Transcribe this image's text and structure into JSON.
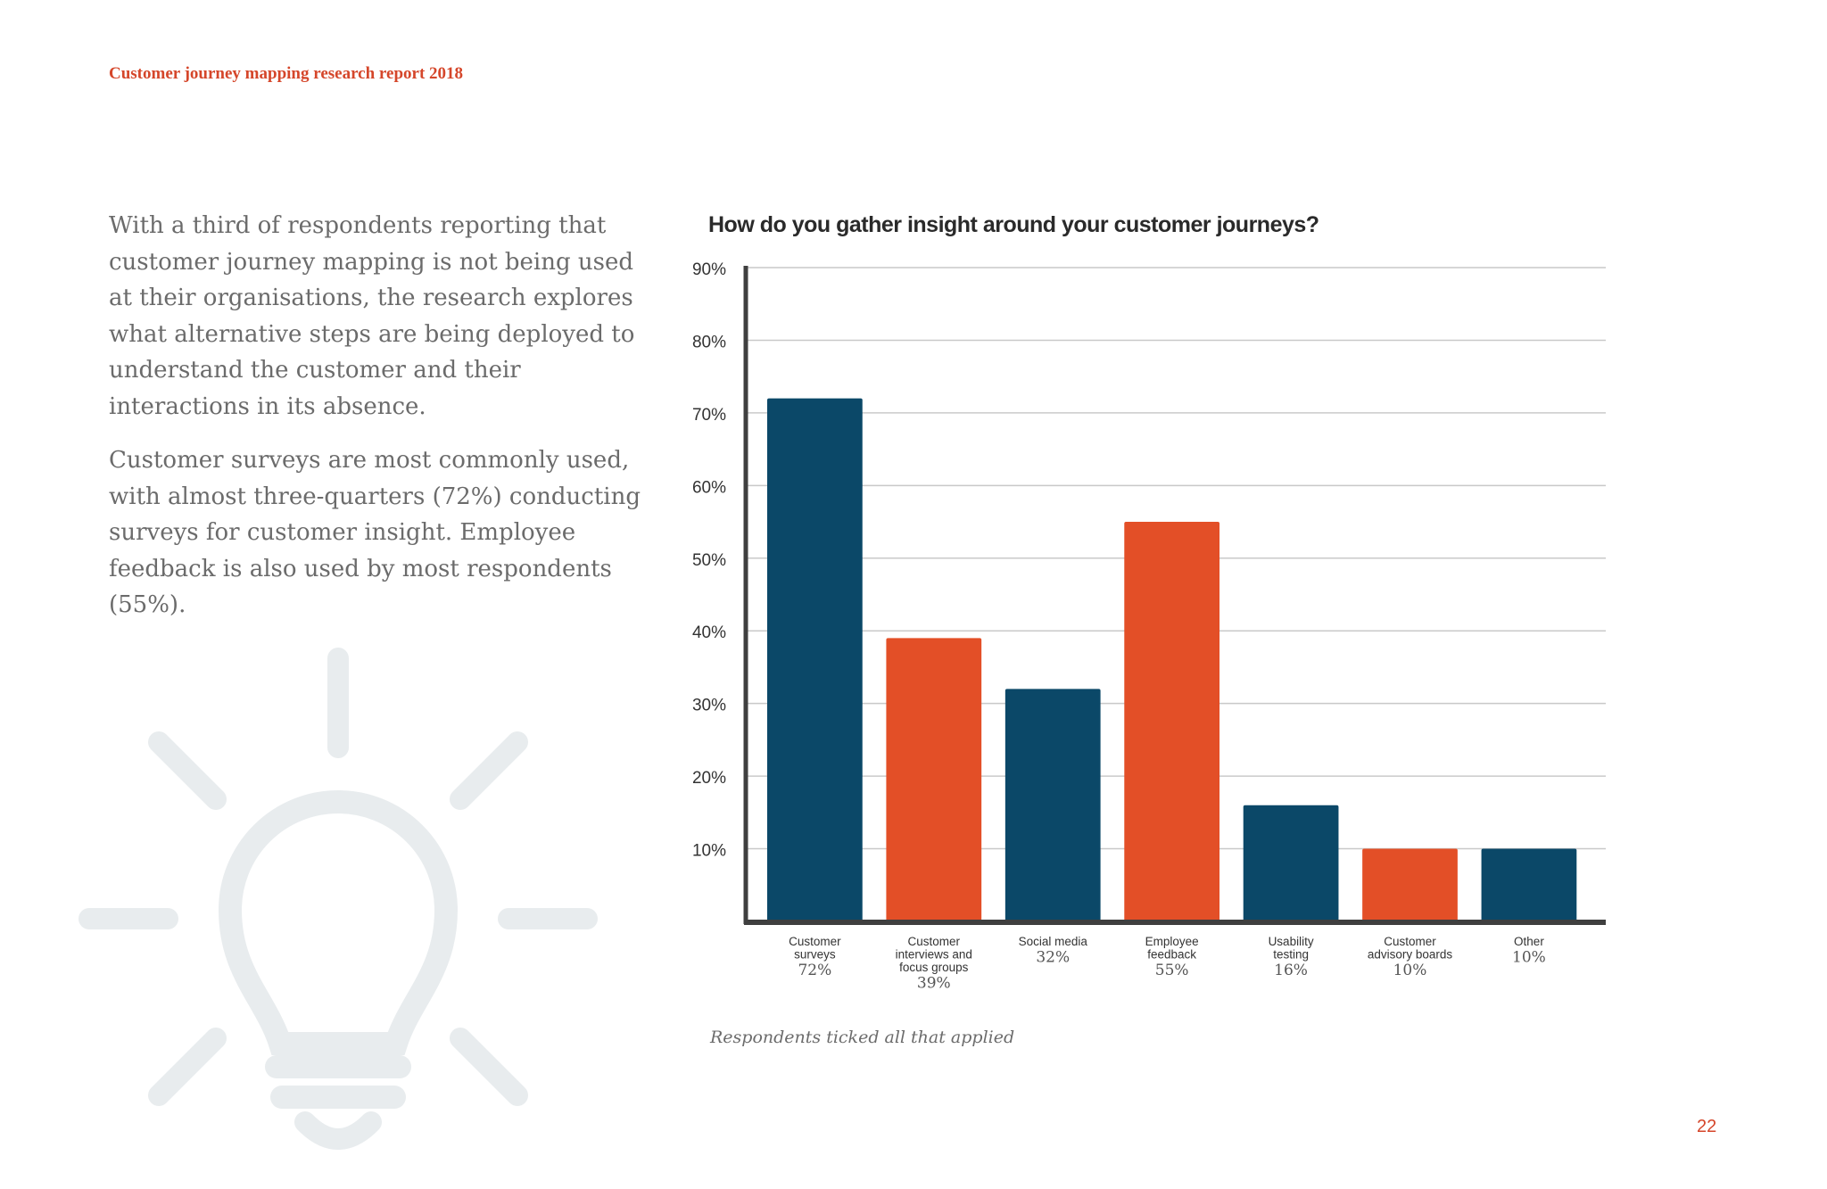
{
  "header": {
    "title": "Customer journey mapping research report 2018"
  },
  "intro": {
    "paragraph_1": "With a third of respondents reporting that customer journey mapping is not being used at their organisations, the research explores what alternative steps are being deployed to understand the customer and their interactions in its absence.",
    "paragraph_2": "Customer surveys are most commonly used, with almost three-quarters (72%) conducting surveys for customer insight. Employee feedback is also used by most respondents (55%)."
  },
  "decoration": {
    "icon": "lightbulb-icon"
  },
  "chart_data": {
    "type": "bar",
    "title": "How do you gather insight around your customer journeys?",
    "xlabel": "",
    "ylabel": "",
    "ylim": [
      0,
      90
    ],
    "yticks": [
      10,
      20,
      30,
      40,
      50,
      60,
      70,
      80,
      90
    ],
    "ytick_labels": [
      "10%",
      "20%",
      "30%",
      "40%",
      "50%",
      "60%",
      "70%",
      "80%",
      "90%"
    ],
    "grid": true,
    "categories": [
      [
        "Customer",
        "surveys"
      ],
      [
        "Customer",
        "interviews and",
        "focus groups"
      ],
      [
        "Social media"
      ],
      [
        "Employee",
        "feedback"
      ],
      [
        "Usability",
        "testing"
      ],
      [
        "Customer",
        "advisory boards"
      ],
      [
        "Other"
      ]
    ],
    "values": [
      72,
      39,
      32,
      55,
      16,
      10,
      10
    ],
    "value_labels": [
      "72%",
      "39%",
      "32%",
      "55%",
      "16%",
      "10%",
      "10%"
    ],
    "bar_colors": [
      "#0b4868",
      "#e34f27",
      "#0b4868",
      "#e34f27",
      "#0b4868",
      "#e34f27",
      "#0b4868"
    ]
  },
  "footnote": "Respondents ticked all that applied",
  "page_number": "22",
  "colors": {
    "accent": "#d5462a",
    "navy": "#0b4868",
    "orange": "#e34f27",
    "text": "#6b6b6b",
    "icon": "#e8ecee"
  }
}
